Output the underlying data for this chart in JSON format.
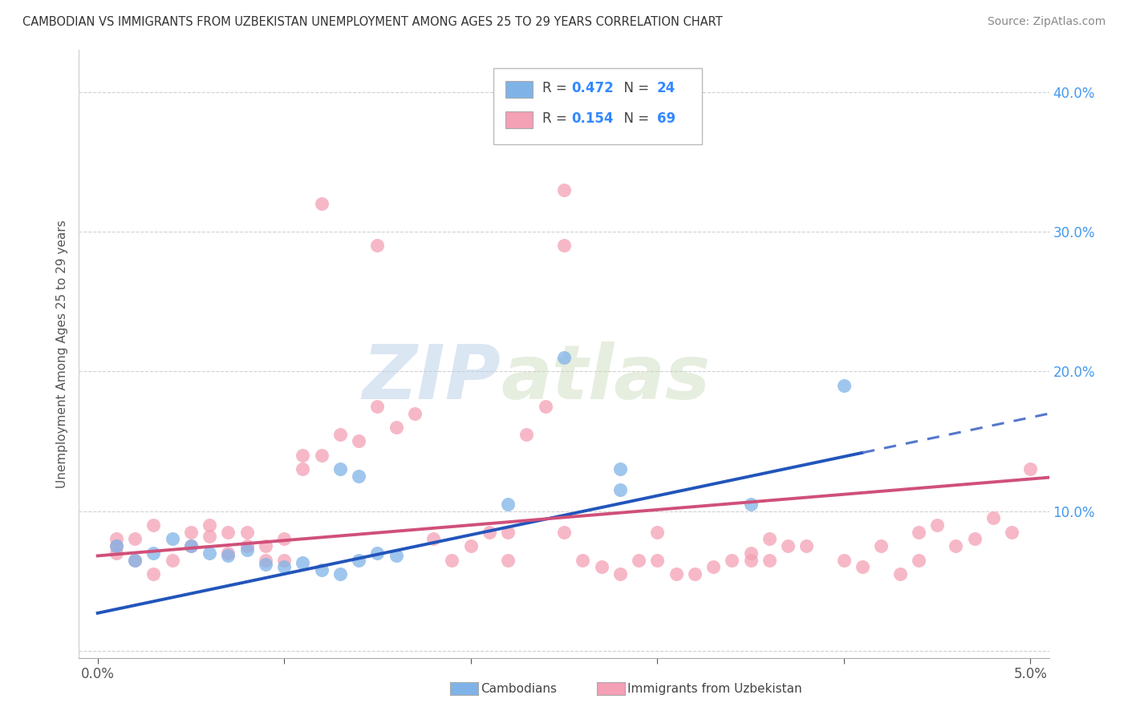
{
  "title": "CAMBODIAN VS IMMIGRANTS FROM UZBEKISTAN UNEMPLOYMENT AMONG AGES 25 TO 29 YEARS CORRELATION CHART",
  "source": "Source: ZipAtlas.com",
  "ylabel": "Unemployment Among Ages 25 to 29 years",
  "legend_blue_r": "0.472",
  "legend_blue_n": "24",
  "legend_pink_r": "0.154",
  "legend_pink_n": "69",
  "legend_label_blue": "Cambodians",
  "legend_label_pink": "Immigrants from Uzbekistan",
  "blue_color": "#7fb3e8",
  "pink_color": "#f4a0b5",
  "blue_scatter": [
    [
      0.001,
      0.075
    ],
    [
      0.002,
      0.065
    ],
    [
      0.003,
      0.07
    ],
    [
      0.004,
      0.08
    ],
    [
      0.005,
      0.075
    ],
    [
      0.006,
      0.07
    ],
    [
      0.007,
      0.068
    ],
    [
      0.008,
      0.072
    ],
    [
      0.009,
      0.062
    ],
    [
      0.01,
      0.06
    ],
    [
      0.011,
      0.063
    ],
    [
      0.012,
      0.058
    ],
    [
      0.013,
      0.055
    ],
    [
      0.014,
      0.065
    ],
    [
      0.015,
      0.07
    ],
    [
      0.016,
      0.068
    ],
    [
      0.013,
      0.13
    ],
    [
      0.014,
      0.125
    ],
    [
      0.022,
      0.105
    ],
    [
      0.025,
      0.21
    ],
    [
      0.028,
      0.13
    ],
    [
      0.028,
      0.115
    ],
    [
      0.035,
      0.105
    ],
    [
      0.04,
      0.19
    ]
  ],
  "pink_scatter": [
    [
      0.001,
      0.07
    ],
    [
      0.001,
      0.075
    ],
    [
      0.001,
      0.08
    ],
    [
      0.002,
      0.065
    ],
    [
      0.002,
      0.08
    ],
    [
      0.003,
      0.09
    ],
    [
      0.003,
      0.055
    ],
    [
      0.004,
      0.065
    ],
    [
      0.005,
      0.075
    ],
    [
      0.005,
      0.085
    ],
    [
      0.006,
      0.09
    ],
    [
      0.006,
      0.082
    ],
    [
      0.007,
      0.085
    ],
    [
      0.007,
      0.07
    ],
    [
      0.008,
      0.085
    ],
    [
      0.008,
      0.075
    ],
    [
      0.009,
      0.075
    ],
    [
      0.009,
      0.065
    ],
    [
      0.01,
      0.065
    ],
    [
      0.01,
      0.08
    ],
    [
      0.011,
      0.13
    ],
    [
      0.011,
      0.14
    ],
    [
      0.012,
      0.14
    ],
    [
      0.012,
      0.32
    ],
    [
      0.013,
      0.155
    ],
    [
      0.014,
      0.15
    ],
    [
      0.015,
      0.175
    ],
    [
      0.015,
      0.29
    ],
    [
      0.016,
      0.16
    ],
    [
      0.017,
      0.17
    ],
    [
      0.018,
      0.08
    ],
    [
      0.019,
      0.065
    ],
    [
      0.02,
      0.075
    ],
    [
      0.021,
      0.085
    ],
    [
      0.022,
      0.085
    ],
    [
      0.023,
      0.155
    ],
    [
      0.024,
      0.175
    ],
    [
      0.025,
      0.085
    ],
    [
      0.025,
      0.29
    ],
    [
      0.025,
      0.33
    ],
    [
      0.026,
      0.065
    ],
    [
      0.027,
      0.06
    ],
    [
      0.028,
      0.055
    ],
    [
      0.029,
      0.065
    ],
    [
      0.03,
      0.065
    ],
    [
      0.031,
      0.055
    ],
    [
      0.032,
      0.055
    ],
    [
      0.033,
      0.06
    ],
    [
      0.034,
      0.065
    ],
    [
      0.035,
      0.065
    ],
    [
      0.035,
      0.07
    ],
    [
      0.036,
      0.065
    ],
    [
      0.037,
      0.075
    ],
    [
      0.038,
      0.075
    ],
    [
      0.04,
      0.065
    ],
    [
      0.041,
      0.06
    ],
    [
      0.042,
      0.075
    ],
    [
      0.043,
      0.055
    ],
    [
      0.044,
      0.065
    ],
    [
      0.044,
      0.085
    ],
    [
      0.045,
      0.09
    ],
    [
      0.046,
      0.075
    ],
    [
      0.047,
      0.08
    ],
    [
      0.048,
      0.095
    ],
    [
      0.049,
      0.085
    ],
    [
      0.05,
      0.13
    ],
    [
      0.022,
      0.065
    ],
    [
      0.03,
      0.085
    ],
    [
      0.036,
      0.08
    ]
  ],
  "xlim": [
    -0.001,
    0.051
  ],
  "ylim": [
    -0.005,
    0.43
  ],
  "yticks": [
    0.0,
    0.1,
    0.2,
    0.3,
    0.4
  ],
  "xticks": [
    0.0,
    0.01,
    0.02,
    0.03,
    0.04,
    0.05
  ],
  "blue_trend_slope": 2.8,
  "blue_trend_intercept": 0.027,
  "pink_trend_slope": 1.1,
  "pink_trend_intercept": 0.068,
  "blue_trend_solid_end": 0.041,
  "blue_trend_end": 0.051,
  "pink_trend_end": 0.051,
  "watermark_zip": "ZIP",
  "watermark_atlas": "atlas",
  "background_color": "#ffffff",
  "grid_color": "#d0d0d0"
}
